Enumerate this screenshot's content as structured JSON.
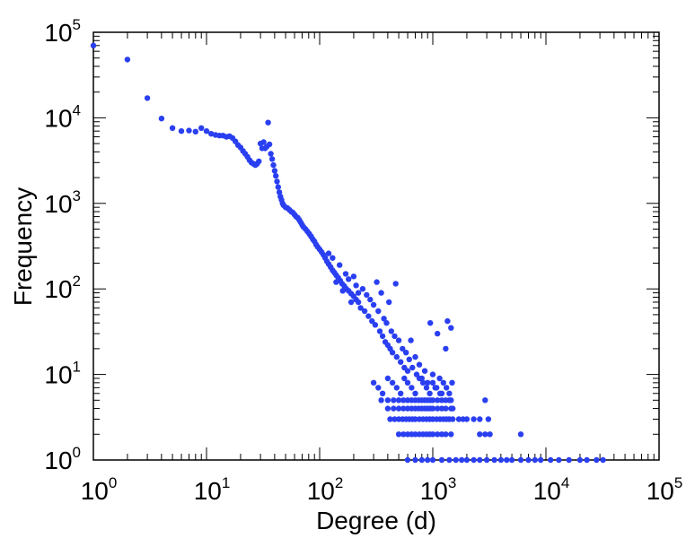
{
  "chart_data": {
    "type": "scatter",
    "title": "",
    "xlabel": "Degree (d)",
    "ylabel": "Frequency",
    "xscale": "log",
    "yscale": "log",
    "xlim": [
      1,
      100000
    ],
    "ylim": [
      1,
      100000
    ],
    "grid": false,
    "legend": "none",
    "x_ticks": [
      {
        "base": "10",
        "exp": "0"
      },
      {
        "base": "10",
        "exp": "1"
      },
      {
        "base": "10",
        "exp": "2"
      },
      {
        "base": "10",
        "exp": "3"
      },
      {
        "base": "10",
        "exp": "4"
      },
      {
        "base": "10",
        "exp": "5"
      }
    ],
    "y_ticks": [
      {
        "base": "10",
        "exp": "0"
      },
      {
        "base": "10",
        "exp": "1"
      },
      {
        "base": "10",
        "exp": "2"
      },
      {
        "base": "10",
        "exp": "3"
      },
      {
        "base": "10",
        "exp": "4"
      },
      {
        "base": "10",
        "exp": "5"
      }
    ],
    "marker_color": "#2a3ff0",
    "series": [
      {
        "points": [
          [
            1,
            70000
          ],
          [
            2,
            48000
          ],
          [
            3,
            17000
          ],
          [
            4,
            9800
          ],
          [
            5,
            7600
          ],
          [
            6,
            7000
          ],
          [
            7,
            7100
          ],
          [
            8,
            6900
          ],
          [
            9,
            7600
          ],
          [
            10,
            7000
          ],
          [
            11,
            6500
          ],
          [
            12,
            6300
          ],
          [
            13,
            6200
          ],
          [
            14,
            6200
          ],
          [
            15,
            6000
          ],
          [
            16,
            6100
          ],
          [
            17,
            5800
          ],
          [
            18,
            5300
          ],
          [
            19,
            4800
          ],
          [
            20,
            4500
          ],
          [
            21,
            4100
          ],
          [
            22,
            3800
          ],
          [
            23,
            3500
          ],
          [
            24,
            3200
          ],
          [
            25,
            3000
          ],
          [
            26,
            2900
          ],
          [
            27,
            2800
          ],
          [
            28,
            2900
          ],
          [
            29,
            3100
          ],
          [
            30,
            5000
          ],
          [
            31,
            4400
          ],
          [
            32,
            5200
          ],
          [
            33,
            4400
          ],
          [
            34,
            4600
          ],
          [
            35,
            8800
          ],
          [
            36,
            4900
          ],
          [
            37,
            3800
          ],
          [
            38,
            3300
          ],
          [
            39,
            2800
          ],
          [
            40,
            2400
          ],
          [
            41,
            2100
          ],
          [
            42,
            1800
          ],
          [
            43,
            1550
          ],
          [
            44,
            1350
          ],
          [
            45,
            1200
          ],
          [
            46,
            1100
          ],
          [
            47,
            1000
          ],
          [
            48,
            950
          ],
          [
            50,
            900
          ],
          [
            52,
            880
          ],
          [
            54,
            840
          ],
          [
            56,
            800
          ],
          [
            58,
            780
          ],
          [
            60,
            740
          ],
          [
            62,
            700
          ],
          [
            64,
            680
          ],
          [
            66,
            640
          ],
          [
            68,
            600
          ],
          [
            70,
            560
          ],
          [
            72,
            530
          ],
          [
            75,
            500
          ],
          [
            78,
            470
          ],
          [
            81,
            440
          ],
          [
            84,
            410
          ],
          [
            87,
            380
          ],
          [
            90,
            360
          ],
          [
            93,
            330
          ],
          [
            96,
            310
          ],
          [
            100,
            290
          ],
          [
            104,
            270
          ],
          [
            108,
            250
          ],
          [
            112,
            230
          ],
          [
            116,
            210
          ],
          [
            120,
            195
          ],
          [
            125,
            180
          ],
          [
            130,
            165
          ],
          [
            135,
            155
          ],
          [
            140,
            145
          ],
          [
            146,
            135
          ],
          [
            152,
            125
          ],
          [
            158,
            115
          ],
          [
            165,
            108
          ],
          [
            172,
            100
          ],
          [
            180,
            95
          ],
          [
            190,
            88
          ],
          [
            200,
            82
          ],
          [
            210,
            75
          ],
          [
            220,
            70
          ],
          [
            120,
            260
          ],
          [
            130,
            230
          ],
          [
            140,
            120
          ],
          [
            150,
            190
          ],
          [
            160,
            95
          ],
          [
            170,
            150
          ],
          [
            180,
            130
          ],
          [
            190,
            70
          ],
          [
            200,
            140
          ],
          [
            210,
            110
          ],
          [
            220,
            90
          ],
          [
            230,
            60
          ],
          [
            240,
            100
          ],
          [
            250,
            55
          ],
          [
            260,
            85
          ],
          [
            270,
            48
          ],
          [
            280,
            75
          ],
          [
            290,
            42
          ],
          [
            300,
            65
          ],
          [
            310,
            38
          ],
          [
            320,
            120
          ],
          [
            330,
            55
          ],
          [
            340,
            32
          ],
          [
            350,
            90
          ],
          [
            360,
            28
          ],
          [
            370,
            45
          ],
          [
            380,
            24
          ],
          [
            390,
            40
          ],
          [
            400,
            22
          ],
          [
            410,
            70
          ],
          [
            420,
            20
          ],
          [
            430,
            32
          ],
          [
            440,
            18
          ],
          [
            460,
            28
          ],
          [
            470,
            115
          ],
          [
            480,
            16
          ],
          [
            500,
            25
          ],
          [
            520,
            14
          ],
          [
            540,
            20
          ],
          [
            560,
            12
          ],
          [
            580,
            18
          ],
          [
            600,
            11
          ],
          [
            620,
            15
          ],
          [
            640,
            25
          ],
          [
            660,
            12
          ],
          [
            700,
            16
          ],
          [
            720,
            10
          ],
          [
            760,
            13
          ],
          [
            800,
            9
          ],
          [
            850,
            11
          ],
          [
            900,
            8
          ],
          [
            950,
            40
          ],
          [
            1000,
            10
          ],
          [
            1050,
            7
          ],
          [
            1100,
            30
          ],
          [
            1150,
            9
          ],
          [
            1200,
            6
          ],
          [
            1300,
            20
          ],
          [
            1350,
            42
          ],
          [
            1400,
            5
          ],
          [
            1450,
            35
          ],
          [
            1500,
            4
          ],
          [
            300,
            8
          ],
          [
            330,
            7
          ],
          [
            360,
            6
          ],
          [
            400,
            9
          ],
          [
            440,
            8
          ],
          [
            480,
            7
          ],
          [
            520,
            6
          ],
          [
            560,
            9
          ],
          [
            600,
            8
          ],
          [
            650,
            7
          ],
          [
            700,
            6
          ],
          [
            760,
            9
          ],
          [
            820,
            8
          ],
          [
            880,
            7
          ],
          [
            940,
            6
          ],
          [
            1000,
            8
          ],
          [
            1080,
            7
          ],
          [
            1160,
            6
          ],
          [
            1240,
            8
          ],
          [
            1320,
            7
          ],
          [
            1400,
            6
          ],
          [
            1480,
            8
          ],
          [
            350,
            5
          ],
          [
            400,
            5
          ],
          [
            450,
            5
          ],
          [
            500,
            5
          ],
          [
            550,
            5
          ],
          [
            600,
            5
          ],
          [
            650,
            5
          ],
          [
            700,
            5
          ],
          [
            750,
            5
          ],
          [
            800,
            5
          ],
          [
            850,
            5
          ],
          [
            900,
            5
          ],
          [
            950,
            5
          ],
          [
            1000,
            5
          ],
          [
            1100,
            5
          ],
          [
            1200,
            5
          ],
          [
            1300,
            5
          ],
          [
            1450,
            5
          ],
          [
            2900,
            5
          ],
          [
            400,
            4
          ],
          [
            450,
            4
          ],
          [
            500,
            4
          ],
          [
            550,
            4
          ],
          [
            600,
            4
          ],
          [
            650,
            4
          ],
          [
            700,
            4
          ],
          [
            750,
            4
          ],
          [
            800,
            4
          ],
          [
            850,
            4
          ],
          [
            900,
            4
          ],
          [
            950,
            4
          ],
          [
            1000,
            4
          ],
          [
            1100,
            4
          ],
          [
            1200,
            4
          ],
          [
            1300,
            4
          ],
          [
            1450,
            4
          ],
          [
            420,
            3
          ],
          [
            460,
            3
          ],
          [
            500,
            3
          ],
          [
            540,
            3
          ],
          [
            580,
            3
          ],
          [
            620,
            3
          ],
          [
            660,
            3
          ],
          [
            700,
            3
          ],
          [
            760,
            3
          ],
          [
            820,
            3
          ],
          [
            880,
            3
          ],
          [
            940,
            3
          ],
          [
            1000,
            3
          ],
          [
            1080,
            3
          ],
          [
            1160,
            3
          ],
          [
            1240,
            3
          ],
          [
            1320,
            3
          ],
          [
            1400,
            3
          ],
          [
            1500,
            3
          ],
          [
            1700,
            3
          ],
          [
            1850,
            3
          ],
          [
            2000,
            3
          ],
          [
            2300,
            3
          ],
          [
            2600,
            3
          ],
          [
            3100,
            3
          ],
          [
            500,
            2
          ],
          [
            550,
            2
          ],
          [
            600,
            2
          ],
          [
            650,
            2
          ],
          [
            700,
            2
          ],
          [
            760,
            2
          ],
          [
            820,
            2
          ],
          [
            880,
            2
          ],
          [
            940,
            2
          ],
          [
            1000,
            2
          ],
          [
            1100,
            2
          ],
          [
            1200,
            2
          ],
          [
            1300,
            2
          ],
          [
            1450,
            2
          ],
          [
            2600,
            2
          ],
          [
            2900,
            2
          ],
          [
            3200,
            2
          ],
          [
            6000,
            2
          ],
          [
            600,
            1
          ],
          [
            700,
            1
          ],
          [
            800,
            1
          ],
          [
            900,
            1
          ],
          [
            1000,
            1
          ],
          [
            1200,
            1
          ],
          [
            1400,
            1
          ],
          [
            1600,
            1
          ],
          [
            1800,
            1
          ],
          [
            2000,
            1
          ],
          [
            2300,
            1
          ],
          [
            2600,
            1
          ],
          [
            3000,
            1
          ],
          [
            3500,
            1
          ],
          [
            4000,
            1
          ],
          [
            4500,
            1
          ],
          [
            5000,
            1
          ],
          [
            6000,
            1
          ],
          [
            7000,
            1
          ],
          [
            8000,
            1
          ],
          [
            9000,
            1
          ],
          [
            11000,
            1
          ],
          [
            13000,
            1
          ],
          [
            16000,
            1
          ],
          [
            20000,
            1
          ],
          [
            23000,
            1
          ],
          [
            28000,
            1
          ],
          [
            32000,
            1
          ]
        ]
      }
    ]
  }
}
